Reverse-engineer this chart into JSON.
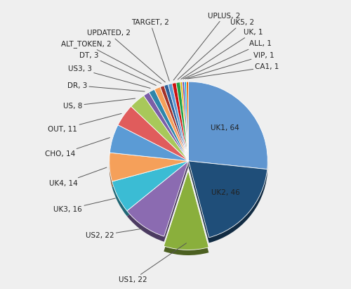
{
  "labels": [
    "UK1",
    "UK2",
    "US1",
    "US2",
    "UK3",
    "UK4",
    "CHO",
    "OUT",
    "US",
    "DR",
    "US3",
    "DT",
    "ALT_TOKEN",
    "UPDATED",
    "TARGET",
    "UPLUS",
    "UK5",
    "UK",
    "ALL",
    "VIP",
    "CA1"
  ],
  "values": [
    64,
    46,
    22,
    22,
    16,
    14,
    14,
    11,
    8,
    3,
    3,
    3,
    2,
    2,
    2,
    2,
    2,
    1,
    1,
    1,
    1
  ],
  "colors": [
    "#6096D0",
    "#1F4E79",
    "#8AAF3C",
    "#8B6BB1",
    "#3BBCD4",
    "#F5A05A",
    "#5B9BD5",
    "#E05C5C",
    "#A8C85A",
    "#7B5EA7",
    "#2E86AB",
    "#F5A05A",
    "#A63228",
    "#2E6099",
    "#5B9BD5",
    "#CC1111",
    "#22A045",
    "#E8B000",
    "#6B3FA0",
    "#11AADD",
    "#EE6600"
  ],
  "startangle": 90,
  "explode_index": 2,
  "bg_color": "#EFEFEF",
  "label_fontsize": 7.5,
  "label_color": "#222222"
}
